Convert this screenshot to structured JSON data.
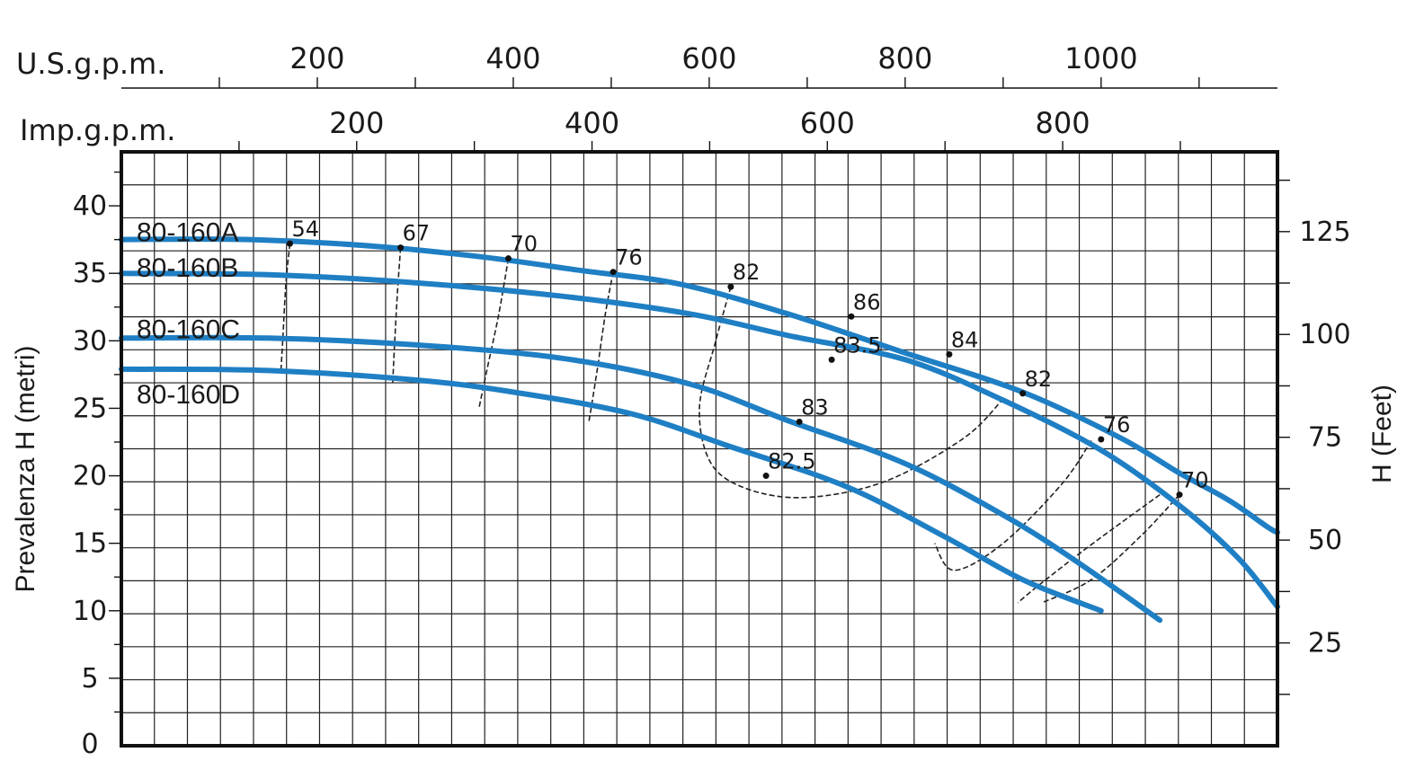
{
  "chart_data": {
    "type": "line",
    "top_axes": [
      {
        "label": "U.S.g.p.m.",
        "ticks": [
          "200",
          "400",
          "600",
          "800",
          "1000"
        ]
      },
      {
        "label": "Imp.g.p.m.",
        "ticks": [
          "200",
          "400",
          "600",
          "800"
        ]
      }
    ],
    "ylabel": "Prevalenza H (metri)",
    "ylabel_right": "H (Feet)",
    "y_ticks": [
      "0",
      "5",
      "10",
      "15",
      "20",
      "25",
      "30",
      "35",
      "40"
    ],
    "y_right_ticks": [
      "25",
      "50",
      "75",
      "100",
      "125"
    ],
    "ylim": [
      0,
      44
    ],
    "ylim_right_ft": [
      0,
      144.4
    ],
    "xlim_us_gpm": [
      0,
      1180
    ],
    "grid": true,
    "colors": {
      "curve": "#1f7fc4",
      "grid": "#222222",
      "frame": "#111111",
      "efficiency": "#222222"
    },
    "series": [
      {
        "name": "80-160A",
        "points": [
          [
            0,
            37.5
          ],
          [
            130,
            37.5
          ],
          [
            260,
            37.0
          ],
          [
            370,
            36.2
          ],
          [
            470,
            35.2
          ],
          [
            570,
            34.2
          ],
          [
            680,
            32.0
          ],
          [
            800,
            29.1
          ],
          [
            920,
            26.2
          ],
          [
            1020,
            22.8
          ],
          [
            1080,
            20.2
          ],
          [
            1130,
            18.2
          ],
          [
            1170,
            16.2
          ],
          [
            1180,
            15.8
          ]
        ]
      },
      {
        "name": "80-160B",
        "points": [
          [
            0,
            35.0
          ],
          [
            150,
            34.9
          ],
          [
            300,
            34.3
          ],
          [
            450,
            33.3
          ],
          [
            580,
            32.0
          ],
          [
            680,
            30.4
          ],
          [
            800,
            28.6
          ],
          [
            900,
            25.6
          ],
          [
            1000,
            21.9
          ],
          [
            1080,
            17.8
          ],
          [
            1140,
            13.9
          ],
          [
            1180,
            10.3
          ]
        ]
      },
      {
        "name": "80-160C",
        "points": [
          [
            0,
            30.2
          ],
          [
            150,
            30.2
          ],
          [
            300,
            29.7
          ],
          [
            450,
            28.7
          ],
          [
            580,
            26.8
          ],
          [
            680,
            24.1
          ],
          [
            800,
            20.9
          ],
          [
            900,
            17.1
          ],
          [
            970,
            13.9
          ],
          [
            1060,
            9.3
          ]
        ]
      },
      {
        "name": "80-160D",
        "points": [
          [
            0,
            27.9
          ],
          [
            150,
            27.8
          ],
          [
            300,
            27.1
          ],
          [
            400,
            26.2
          ],
          [
            520,
            24.6
          ],
          [
            620,
            22.2
          ],
          [
            740,
            19.2
          ],
          [
            840,
            15.5
          ],
          [
            920,
            12.3
          ],
          [
            1000,
            10.0
          ]
        ]
      }
    ],
    "efficiency_labels": [
      "54",
      "67",
      "70",
      "76",
      "82",
      "86",
      "84",
      "82",
      "76",
      "70",
      "83.5",
      "83",
      "82.5"
    ],
    "efficiency_lines": [
      {
        "label": "54",
        "points": [
          [
            172,
            37.2
          ],
          [
            168,
            34.3
          ],
          [
            165,
            30.4
          ],
          [
            163,
            27.9
          ]
        ]
      },
      {
        "label": "67",
        "points": [
          [
            285,
            36.9
          ],
          [
            282,
            33.8
          ],
          [
            279,
            30.0
          ],
          [
            277,
            26.9
          ]
        ]
      },
      {
        "label": "70",
        "points": [
          [
            395,
            36.1
          ],
          [
            385,
            31.9
          ],
          [
            373,
            27.8
          ],
          [
            365,
            25.0
          ]
        ]
      },
      {
        "label": "76",
        "points": [
          [
            502,
            35.1
          ],
          [
            494,
            32.0
          ],
          [
            486,
            28.0
          ],
          [
            477,
            23.9
          ]
        ]
      },
      {
        "label": "82",
        "points": [
          [
            622,
            34.0
          ],
          [
            606,
            29.8
          ],
          [
            590,
            25.0
          ],
          [
            602,
            20.9
          ],
          [
            640,
            19.0
          ],
          [
            700,
            18.4
          ],
          [
            780,
            19.6
          ],
          [
            860,
            22.8
          ],
          [
            900,
            25.7
          ]
        ]
      },
      {
        "label": "82 / 83 / 83.5",
        "points": [
          [
            990,
            22.6
          ],
          [
            960,
            19.4
          ],
          [
            900,
            15.0
          ],
          [
            850,
            13.0
          ],
          [
            830,
            15.0
          ]
        ]
      },
      {
        "label": "76",
        "points": [
          [
            1060,
            18.6
          ],
          [
            990,
            14.9
          ],
          [
            940,
            12.1
          ],
          [
            915,
            10.6
          ]
        ]
      },
      {
        "label": "70",
        "points": [
          [
            1080,
            18.6
          ],
          [
            1040,
            15.5
          ],
          [
            990,
            12.3
          ],
          [
            940,
            10.6
          ]
        ]
      }
    ],
    "efficiency_points": [
      {
        "label": "54",
        "x": 172,
        "y": 37.2
      },
      {
        "label": "67",
        "x": 285,
        "y": 36.9
      },
      {
        "label": "70",
        "x": 395,
        "y": 36.1
      },
      {
        "label": "76",
        "x": 502,
        "y": 35.1
      },
      {
        "label": "82",
        "x": 622,
        "y": 34.0
      },
      {
        "label": "86",
        "x": 745,
        "y": 31.8
      },
      {
        "label": "84",
        "x": 845,
        "y": 29.0
      },
      {
        "label": "82",
        "x": 920,
        "y": 26.1
      },
      {
        "label": "76",
        "x": 1000,
        "y": 22.7
      },
      {
        "label": "70",
        "x": 1080,
        "y": 18.6
      },
      {
        "label": "83.5",
        "x": 725,
        "y": 28.6
      },
      {
        "label": "83",
        "x": 692,
        "y": 24.0
      },
      {
        "label": "82.5",
        "x": 658,
        "y": 20.0
      }
    ]
  }
}
